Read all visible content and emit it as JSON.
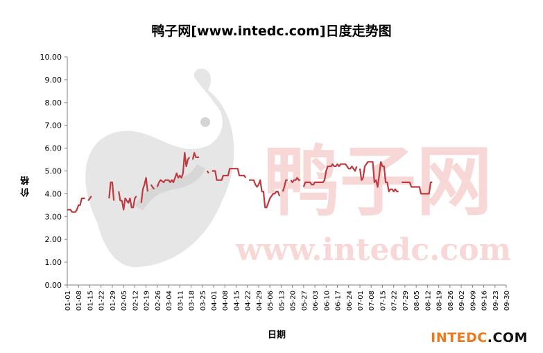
{
  "title": "鸭子网[www.intedc.com]日度走势图",
  "brand": {
    "part1": "INTEDC",
    "part2": ".COM"
  },
  "watermark": {
    "text_cn": "鸭子网",
    "text_url": "www.intedc.com"
  },
  "colors": {
    "line": "#c0393e",
    "axis": "#808080",
    "accent": "#f07818"
  },
  "chart_data": {
    "type": "line",
    "title": "鸭子网[www.intedc.com]日度走势图",
    "xlabel": "日期",
    "ylabel": "价格",
    "ylim": [
      0,
      10
    ],
    "y_ticks": [
      "0.00",
      "1.00",
      "2.00",
      "3.00",
      "4.00",
      "5.00",
      "6.00",
      "7.00",
      "8.00",
      "9.00",
      "10.00"
    ],
    "x_ticks": [
      "01-01",
      "01-08",
      "01-15",
      "01-22",
      "01-29",
      "02-05",
      "02-12",
      "02-19",
      "02-26",
      "03-04",
      "03-11",
      "03-18",
      "03-25",
      "04-01",
      "04-08",
      "04-15",
      "04-22",
      "04-29",
      "05-06",
      "05-13",
      "05-20",
      "05-27",
      "06-03",
      "06-10",
      "06-17",
      "06-24",
      "07-01",
      "07-08",
      "07-15",
      "07-22",
      "07-29",
      "08-05",
      "08-12",
      "08-19",
      "08-26",
      "09-02",
      "09-09",
      "09-16",
      "09-23",
      "09-30"
    ],
    "grid": false,
    "series": [
      {
        "segments": [
          [
            [
              "01-01",
              3.3
            ],
            [
              "01-03",
              3.3
            ],
            [
              "01-04",
              3.2
            ],
            [
              "01-06",
              3.2
            ],
            [
              "01-07",
              3.3
            ],
            [
              "01-08",
              3.5
            ],
            [
              "01-09",
              3.5
            ],
            [
              "01-10",
              3.8
            ],
            [
              "01-12",
              3.8
            ]
          ],
          [
            [
              "01-14",
              3.7
            ],
            [
              "01-15",
              3.8
            ],
            [
              "01-16",
              3.9
            ]
          ],
          [
            [
              "01-27",
              3.8
            ],
            [
              "01-28",
              4.5
            ],
            [
              "01-29",
              4.5
            ],
            [
              "01-30",
              3.7
            ]
          ],
          [
            [
              "02-02",
              4.1
            ],
            [
              "02-03",
              3.7
            ],
            [
              "02-04",
              3.7
            ],
            [
              "02-05",
              3.3
            ],
            [
              "02-06",
              3.8
            ],
            [
              "02-07",
              3.7
            ],
            [
              "02-08",
              3.6
            ],
            [
              "02-09",
              3.8
            ],
            [
              "02-10",
              3.4
            ],
            [
              "02-11",
              3.4
            ],
            [
              "02-12",
              3.8
            ],
            [
              "02-13",
              3.9
            ]
          ],
          [
            [
              "02-16",
              3.6
            ],
            [
              "02-17",
              4.2
            ],
            [
              "02-18",
              4.4
            ],
            [
              "02-19",
              4.7
            ],
            [
              "02-20",
              4.1
            ]
          ],
          [
            [
              "02-22",
              4.4
            ],
            [
              "02-23",
              4.3
            ],
            [
              "02-24",
              4.2
            ]
          ],
          [
            [
              "02-26",
              4.3
            ],
            [
              "02-27",
              4.5
            ],
            [
              "02-28",
              4.6
            ],
            [
              "03-01",
              4.5
            ],
            [
              "03-02",
              4.6
            ],
            [
              "03-03",
              4.6
            ],
            [
              "03-04",
              4.6
            ],
            [
              "03-05",
              4.5
            ],
            [
              "03-06",
              4.6
            ],
            [
              "03-07",
              4.5
            ],
            [
              "03-08",
              4.7
            ],
            [
              "03-09",
              4.9
            ],
            [
              "03-10",
              4.7
            ],
            [
              "03-11",
              4.8
            ],
            [
              "03-12",
              4.7
            ],
            [
              "03-13",
              4.9
            ],
            [
              "03-14",
              5.8
            ],
            [
              "03-15",
              5.2
            ],
            [
              "03-16",
              5.5
            ],
            [
              "03-17",
              5.6
            ]
          ],
          [
            [
              "03-19",
              5.5
            ],
            [
              "03-20",
              5.8
            ],
            [
              "03-21",
              5.6
            ],
            [
              "03-22",
              5.6
            ],
            [
              "03-23",
              5.6
            ]
          ],
          [
            [
              "03-28",
              5.0
            ],
            [
              "03-29",
              4.9
            ]
          ],
          [
            [
              "03-31",
              5.0
            ],
            [
              "04-01",
              5.0
            ],
            [
              "04-02",
              5.0
            ],
            [
              "04-03",
              4.6
            ],
            [
              "04-04",
              4.6
            ],
            [
              "04-05",
              4.6
            ],
            [
              "04-06",
              4.6
            ],
            [
              "04-07",
              4.8
            ],
            [
              "04-08",
              4.8
            ],
            [
              "04-09",
              4.8
            ],
            [
              "04-10",
              4.8
            ],
            [
              "04-11",
              5.1
            ],
            [
              "04-12",
              5.1
            ],
            [
              "04-13",
              5.1
            ],
            [
              "04-14",
              5.1
            ],
            [
              "04-15",
              5.1
            ],
            [
              "04-16",
              5.1
            ],
            [
              "04-17",
              4.8
            ],
            [
              "04-18",
              4.8
            ],
            [
              "04-19",
              4.8
            ],
            [
              "04-20",
              4.8
            ],
            [
              "04-21",
              4.7
            ]
          ],
          [
            [
              "04-23",
              4.6
            ],
            [
              "04-24",
              4.6
            ],
            [
              "04-25",
              4.6
            ],
            [
              "04-26",
              4.6
            ],
            [
              "04-27",
              4.4
            ],
            [
              "04-28",
              4.3
            ],
            [
              "04-29",
              4.4
            ],
            [
              "04-30",
              4.6
            ],
            [
              "05-01",
              4.1
            ],
            [
              "05-02",
              4.1
            ],
            [
              "05-03",
              3.4
            ],
            [
              "05-04",
              3.4
            ],
            [
              "05-05",
              3.6
            ],
            [
              "05-06",
              3.8
            ],
            [
              "05-07",
              3.9
            ],
            [
              "05-08",
              4.0
            ],
            [
              "05-09",
              4.0
            ],
            [
              "05-10",
              4.1
            ],
            [
              "05-11",
              4.1
            ],
            [
              "05-12",
              3.9
            ]
          ],
          [
            [
              "05-14",
              4.1
            ],
            [
              "05-15",
              4.3
            ],
            [
              "05-16",
              4.6
            ],
            [
              "05-17",
              4.6
            ]
          ],
          [
            [
              "05-19",
              4.6
            ],
            [
              "05-20",
              4.5
            ],
            [
              "05-21",
              4.6
            ],
            [
              "05-22",
              4.6
            ],
            [
              "05-23",
              4.7
            ],
            [
              "05-24",
              4.6
            ],
            [
              "05-25",
              4.6
            ]
          ],
          [
            [
              "05-27",
              4.3
            ],
            [
              "05-28",
              4.5
            ],
            [
              "05-29",
              4.5
            ],
            [
              "05-30",
              4.5
            ],
            [
              "05-31",
              4.5
            ],
            [
              "06-01",
              4.4
            ],
            [
              "06-02",
              4.4
            ],
            [
              "06-03",
              4.5
            ],
            [
              "06-04",
              4.5
            ],
            [
              "06-05",
              4.5
            ],
            [
              "06-06",
              4.5
            ],
            [
              "06-07",
              4.5
            ],
            [
              "06-08",
              4.5
            ],
            [
              "06-09",
              4.6
            ],
            [
              "06-10",
              5.0
            ],
            [
              "06-11",
              5.2
            ],
            [
              "06-12",
              5.2
            ],
            [
              "06-13",
              5.2
            ],
            [
              "06-14",
              5.3
            ],
            [
              "06-15",
              5.2
            ],
            [
              "06-16",
              5.2
            ],
            [
              "06-17",
              5.3
            ],
            [
              "06-18",
              5.2
            ],
            [
              "06-19",
              5.3
            ],
            [
              "06-20",
              5.3
            ],
            [
              "06-21",
              5.3
            ],
            [
              "06-22",
              5.3
            ],
            [
              "06-23",
              5.2
            ],
            [
              "06-24",
              5.1
            ],
            [
              "06-25",
              5.1
            ],
            [
              "06-26",
              5.2
            ],
            [
              "06-27",
              5.1
            ],
            [
              "06-28",
              5.0
            ],
            [
              "06-29",
              5.2
            ]
          ],
          [
            [
              "07-01",
              5.1
            ],
            [
              "07-02",
              4.6
            ],
            [
              "07-03",
              4.7
            ],
            [
              "07-04",
              5.2
            ],
            [
              "07-05",
              5.3
            ],
            [
              "07-06",
              5.4
            ],
            [
              "07-07",
              5.4
            ],
            [
              "07-08",
              5.4
            ],
            [
              "07-09",
              5.4
            ],
            [
              "07-10",
              4.5
            ],
            [
              "07-11",
              4.6
            ],
            [
              "07-12",
              4.3
            ],
            [
              "07-13",
              4.8
            ],
            [
              "07-14",
              5.4
            ],
            [
              "07-15",
              5.2
            ],
            [
              "07-16",
              5.2
            ],
            [
              "07-17",
              4.5
            ],
            [
              "07-18",
              4.5
            ],
            [
              "07-19",
              4.1
            ],
            [
              "07-20",
              4.2
            ],
            [
              "07-21",
              4.2
            ],
            [
              "07-22",
              4.1
            ],
            [
              "07-23",
              4.2
            ],
            [
              "07-24",
              4.1
            ],
            [
              "07-25",
              4.1
            ]
          ],
          [
            [
              "07-27",
              4.5
            ],
            [
              "07-28",
              4.5
            ],
            [
              "07-29",
              4.5
            ],
            [
              "07-30",
              4.5
            ],
            [
              "07-31",
              4.5
            ],
            [
              "08-01",
              4.5
            ],
            [
              "08-02",
              4.3
            ],
            [
              "08-03",
              4.3
            ],
            [
              "08-04",
              4.3
            ],
            [
              "08-05",
              4.3
            ],
            [
              "08-06",
              4.3
            ],
            [
              "08-07",
              4.3
            ],
            [
              "08-08",
              4.0
            ],
            [
              "08-09",
              4.0
            ],
            [
              "08-10",
              4.0
            ],
            [
              "08-11",
              4.0
            ],
            [
              "08-12",
              4.0
            ],
            [
              "08-13",
              4.0
            ],
            [
              "08-14",
              4.5
            ],
            [
              "08-15",
              4.5
            ]
          ]
        ]
      }
    ]
  }
}
